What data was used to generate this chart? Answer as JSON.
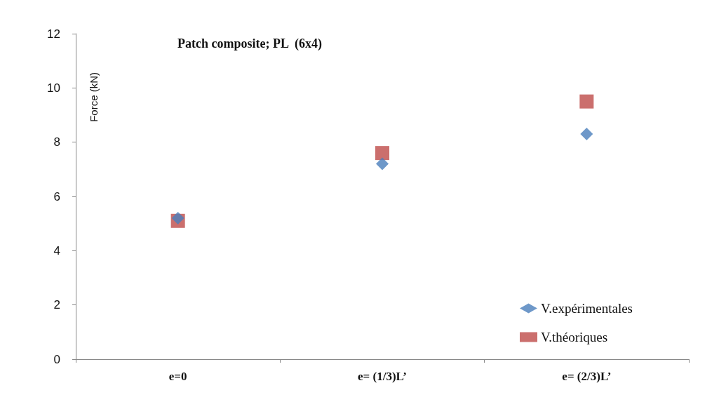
{
  "chart_data": {
    "type": "scatter",
    "title": "Patch composite; PL  (6x4)",
    "ylabel": "Force (kN)",
    "categories": [
      "e=0",
      "e= (1/3)L’",
      "e= (2/3)L’"
    ],
    "series": [
      {
        "name": "V.expérimentales",
        "color": "#4a7ebb",
        "marker": "diamond",
        "values": [
          5.2,
          7.2,
          8.3
        ]
      },
      {
        "name": "V.théoriques",
        "color": "#be4b48",
        "marker": "square",
        "values": [
          5.1,
          7.6,
          9.5
        ]
      }
    ],
    "ylim": [
      0,
      12
    ],
    "yticks": [
      0,
      2,
      4,
      6,
      8,
      10,
      12
    ],
    "grid": false,
    "legend": "bottom right"
  }
}
